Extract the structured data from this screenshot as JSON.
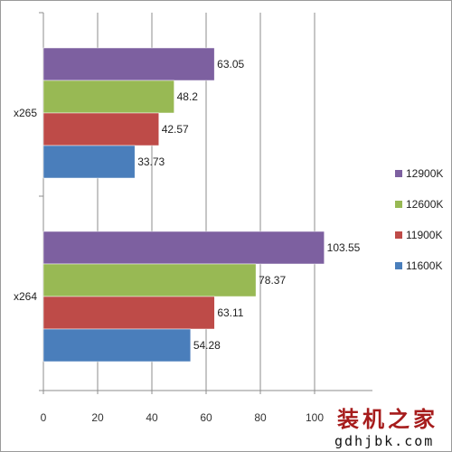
{
  "chart_data": {
    "type": "bar",
    "orientation": "horizontal",
    "categories": [
      "x264",
      "x265"
    ],
    "series": [
      {
        "name": "11600K",
        "values": [
          54.28,
          33.73
        ],
        "color": "#4a7ebb"
      },
      {
        "name": "11900K",
        "values": [
          63.11,
          42.57
        ],
        "color": "#be4b48"
      },
      {
        "name": "12600K",
        "values": [
          78.37,
          48.2
        ],
        "color": "#98b954"
      },
      {
        "name": "12900K",
        "values": [
          103.55,
          63.05
        ],
        "color": "#7d60a0"
      }
    ],
    "value_labels": [
      [
        "54.28",
        "33.73"
      ],
      [
        "63.11",
        "42.57"
      ],
      [
        "78.37",
        "48.2"
      ],
      [
        "103.55",
        "63.05"
      ]
    ],
    "xlim": [
      0,
      120
    ],
    "xticks": [
      "0",
      "20",
      "40",
      "60",
      "80",
      "100"
    ],
    "grid": true,
    "legend": {
      "position": "right",
      "entries": [
        "12900K",
        "12600K",
        "11900K",
        "11600K"
      ]
    },
    "title": "",
    "xlabel": "",
    "ylabel": ""
  },
  "watermark": {
    "text_cn": "装机之家",
    "text_url": "gdhjbk.com"
  }
}
